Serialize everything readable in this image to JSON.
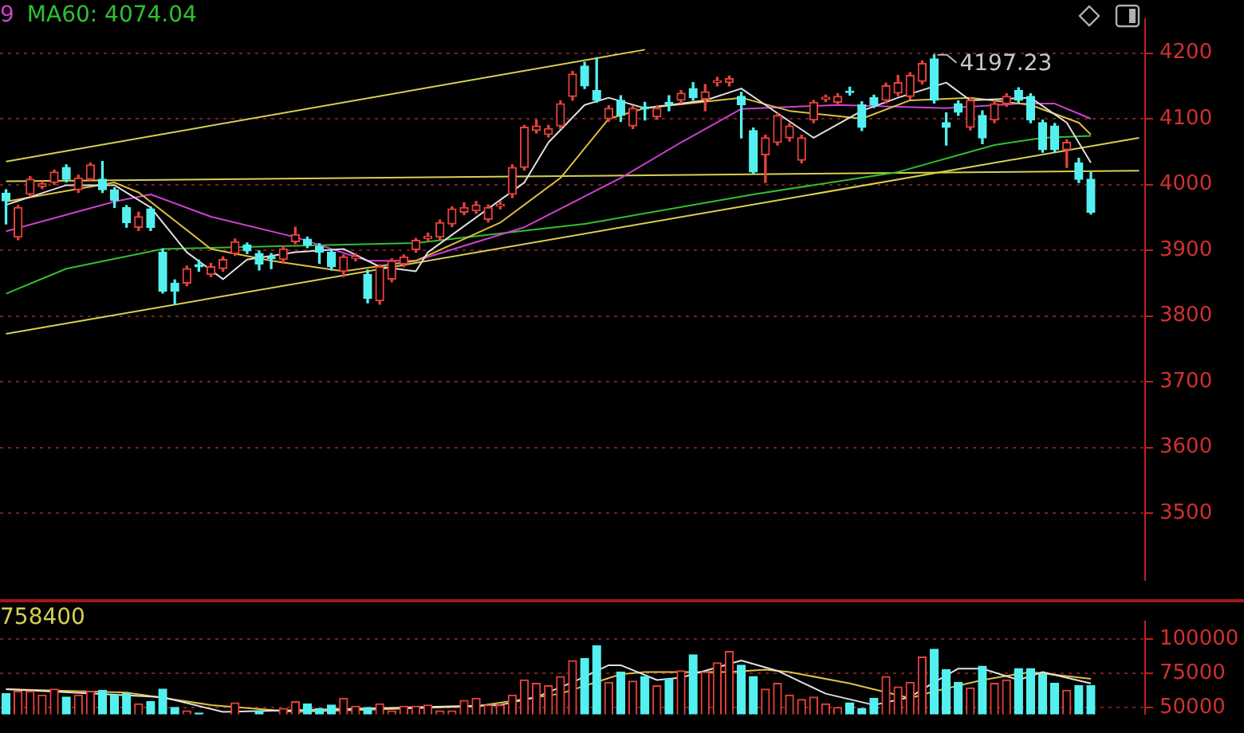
{
  "chart_data": [
    {
      "type": "candlestick",
      "ylim": [
        3398,
        4252
      ],
      "yticks": [
        3500,
        3600,
        3700,
        3800,
        3900,
        4000,
        4100,
        4200
      ],
      "grid": "y",
      "tick_labels": "y",
      "annotations": [
        "9",
        "MA60: 4074.04",
        "4197.23"
      ],
      "categories": [
        null,
        null,
        null,
        null,
        null,
        null,
        null,
        null,
        null,
        null,
        null,
        null,
        null,
        null,
        null,
        null,
        null,
        null,
        null,
        null,
        null,
        null,
        null,
        null,
        null,
        null,
        null,
        null,
        null,
        null,
        null,
        null,
        null,
        null,
        null,
        null,
        null,
        null,
        null,
        null,
        null,
        null,
        null,
        null,
        null,
        null,
        null,
        null,
        null,
        null,
        null,
        null,
        null,
        null,
        null,
        null,
        null,
        null,
        null,
        null,
        null,
        null,
        null,
        null,
        null,
        null,
        null,
        null,
        null,
        null,
        null,
        null,
        null,
        null,
        null,
        null,
        null,
        null,
        null,
        null,
        null,
        null,
        null,
        null,
        null,
        null,
        null,
        null,
        null,
        null,
        null,
        null,
        null,
        null,
        null
      ],
      "ohlc": [
        [
          3987,
          3992,
          3940,
          3975
        ],
        [
          3920,
          3968,
          3916,
          3965
        ],
        [
          3985,
          4012,
          3982,
          4008
        ],
        [
          3997,
          4004,
          3994,
          4001
        ],
        [
          4003,
          4022,
          4000,
          4019
        ],
        [
          4026,
          4030,
          4004,
          4008
        ],
        [
          3992,
          4014,
          3988,
          4010
        ],
        [
          4008,
          4033,
          4005,
          4030
        ],
        [
          4008,
          4035,
          3988,
          3992
        ],
        [
          3992,
          3995,
          3965,
          3976
        ],
        [
          3965,
          3968,
          3935,
          3942
        ],
        [
          3935,
          3958,
          3930,
          3951
        ],
        [
          3963,
          3966,
          3930,
          3935
        ],
        [
          3897,
          3902,
          3835,
          3838
        ],
        [
          3850,
          3855,
          3818,
          3838
        ],
        [
          3850,
          3876,
          3846,
          3872
        ],
        [
          3878,
          3885,
          3868,
          3875
        ],
        [
          3863,
          3880,
          3860,
          3875
        ],
        [
          3872,
          3890,
          3868,
          3886
        ],
        [
          3895,
          3917,
          3892,
          3913
        ],
        [
          3908,
          3911,
          3895,
          3899
        ],
        [
          3895,
          3899,
          3870,
          3879
        ],
        [
          3890,
          3895,
          3872,
          3887
        ],
        [
          3886,
          3906,
          3880,
          3902
        ],
        [
          3913,
          3935,
          3910,
          3924
        ],
        [
          3917,
          3920,
          3904,
          3908
        ],
        [
          3906,
          3910,
          3880,
          3897
        ],
        [
          3897,
          3900,
          3870,
          3875
        ],
        [
          3868,
          3893,
          3860,
          3890
        ],
        [
          3888,
          3895,
          3884,
          3890
        ],
        [
          3863,
          3870,
          3820,
          3827
        ],
        [
          3823,
          3878,
          3818,
          3875
        ],
        [
          3856,
          3887,
          3852,
          3884
        ],
        [
          3879,
          3893,
          3875,
          3890
        ],
        [
          3901,
          3918,
          3897,
          3915
        ],
        [
          3918,
          3926,
          3914,
          3921
        ],
        [
          3920,
          3946,
          3916,
          3942
        ],
        [
          3940,
          3966,
          3936,
          3963
        ],
        [
          3958,
          3972,
          3954,
          3965
        ],
        [
          3960,
          3974,
          3956,
          3969
        ],
        [
          3947,
          3969,
          3943,
          3965
        ],
        [
          3967,
          3974,
          3963,
          3970
        ],
        [
          3985,
          4030,
          3980,
          4026
        ],
        [
          4026,
          4090,
          4022,
          4087
        ],
        [
          4082,
          4098,
          4078,
          4089
        ],
        [
          4076,
          4090,
          4072,
          4085
        ],
        [
          4089,
          4127,
          4085,
          4123
        ],
        [
          4134,
          4172,
          4128,
          4168
        ],
        [
          4180,
          4186,
          4146,
          4150
        ],
        [
          4143,
          4193,
          4125,
          4128
        ],
        [
          4100,
          4120,
          4096,
          4116
        ],
        [
          4128,
          4135,
          4096,
          4105
        ],
        [
          4089,
          4120,
          4085,
          4116
        ],
        [
          4118,
          4125,
          4098,
          4115
        ],
        [
          4103,
          4120,
          4099,
          4116
        ],
        [
          4125,
          4135,
          4112,
          4122
        ],
        [
          4128,
          4143,
          4124,
          4139
        ],
        [
          4146,
          4155,
          4128,
          4132
        ],
        [
          4130,
          4152,
          4112,
          4141
        ],
        [
          4155,
          4163,
          4150,
          4158
        ],
        [
          4155,
          4165,
          4150,
          4161
        ],
        [
          4134,
          4140,
          4071,
          4121
        ],
        [
          4082,
          4086,
          4017,
          4019
        ],
        [
          4045,
          4075,
          4003,
          4071
        ],
        [
          4064,
          4108,
          4060,
          4105
        ],
        [
          4071,
          4093,
          4066,
          4089
        ],
        [
          4037,
          4075,
          4033,
          4071
        ],
        [
          4098,
          4128,
          4094,
          4125
        ],
        [
          4130,
          4136,
          4126,
          4133
        ],
        [
          4125,
          4138,
          4121,
          4134
        ],
        [
          4142,
          4148,
          4136,
          4140
        ],
        [
          4121,
          4126,
          4082,
          4087
        ],
        [
          4132,
          4136,
          4117,
          4121
        ],
        [
          4128,
          4154,
          4124,
          4150
        ],
        [
          4139,
          4166,
          4135,
          4155
        ],
        [
          4134,
          4170,
          4130,
          4166
        ],
        [
          4157,
          4188,
          4153,
          4184
        ],
        [
          4191,
          4197.23,
          4124,
          4128
        ],
        [
          4094,
          4109,
          4060,
          4087
        ],
        [
          4123,
          4127,
          4105,
          4110
        ],
        [
          4087,
          4132,
          4083,
          4128
        ],
        [
          4105,
          4112,
          4062,
          4071
        ],
        [
          4098,
          4127,
          4094,
          4123
        ],
        [
          4123,
          4138,
          4119,
          4134
        ],
        [
          4143,
          4147,
          4124,
          4128
        ],
        [
          4134,
          4138,
          4094,
          4098
        ],
        [
          4094,
          4098,
          4049,
          4053
        ],
        [
          4089,
          4093,
          4049,
          4053
        ],
        [
          4053,
          4068,
          4026,
          4064
        ],
        [
          4033,
          4040,
          4003,
          4008
        ],
        [
          4008,
          4018,
          3955,
          3958
        ],
        null,
        null,
        null,
        null
      ],
      "colors": [
        "#54f0f0",
        "#e8413a",
        "#e8413a",
        "#e8413a",
        "#e8413a",
        "#54f0f0",
        "#e8413a",
        "#e8413a",
        "#54f0f0",
        "#54f0f0",
        "#54f0f0",
        "#e8413a",
        "#54f0f0",
        "#54f0f0",
        "#54f0f0",
        "#e8413a",
        "#54f0f0",
        "#e8413a",
        "#e8413a",
        "#e8413a",
        "#54f0f0",
        "#54f0f0",
        "#54f0f0",
        "#e8413a",
        "#e8413a",
        "#54f0f0",
        "#54f0f0",
        "#54f0f0",
        "#e8413a",
        "#e8413a",
        "#54f0f0",
        "#e8413a",
        "#e8413a",
        "#e8413a",
        "#e8413a",
        "#e8413a",
        "#e8413a",
        "#e8413a",
        "#e8413a",
        "#e8413a",
        "#e8413a",
        "#e8413a",
        "#e8413a",
        "#e8413a",
        "#e8413a",
        "#e8413a",
        "#e8413a",
        "#e8413a",
        "#54f0f0",
        "#54f0f0",
        "#e8413a",
        "#54f0f0",
        "#e8413a",
        "#54f0f0",
        "#e8413a",
        "#54f0f0",
        "#e8413a",
        "#54f0f0",
        "#e8413a",
        "#e8413a",
        "#e8413a",
        "#54f0f0",
        "#54f0f0",
        "#e8413a",
        "#e8413a",
        "#e8413a",
        "#e8413a",
        "#e8413a",
        "#e8413a",
        "#e8413a",
        "#54f0f0",
        "#54f0f0",
        "#54f0f0",
        "#e8413a",
        "#e8413a",
        "#e8413a",
        "#e8413a",
        "#54f0f0",
        "#54f0f0",
        "#54f0f0",
        "#e8413a",
        "#54f0f0",
        "#e8413a",
        "#e8413a",
        "#54f0f0",
        "#54f0f0",
        "#54f0f0",
        "#54f0f0",
        "#e8413a",
        "#54f0f0",
        "#54f0f0",
        null,
        null,
        null,
        null
      ],
      "series": [
        {
          "type": "line",
          "color": "#e0e0e0",
          "values": [
            3969,
            null,
            null,
            null,
            null,
            3999,
            null,
            null,
            null,
            3999,
            null,
            null,
            3965,
            null,
            null,
            3897,
            null,
            null,
            3856,
            null,
            3886,
            null,
            null,
            null,
            3897,
            null,
            null,
            null,
            3902,
            null,
            null,
            3875,
            null,
            null,
            3868,
            3897,
            null,
            null,
            null,
            null,
            null,
            null,
            null,
            4003,
            null,
            4064,
            null,
            null,
            4121,
            null,
            4132,
            null,
            null,
            4116,
            null,
            null,
            null,
            null,
            4128,
            null,
            null,
            4146,
            null,
            4121,
            null,
            null,
            null,
            4071,
            null,
            null,
            null,
            4112,
            null,
            null,
            4132,
            null,
            null,
            null,
            4155,
            null,
            4128,
            null,
            null,
            null,
            null,
            4132,
            null,
            null,
            4094,
            null,
            4033,
            null,
            null,
            null,
            null
          ]
        },
        {
          "type": "line",
          "color": "#e0c040",
          "values": [
            3974,
            null,
            null,
            null,
            null,
            null,
            null,
            null,
            null,
            4003,
            null,
            3988,
            null,
            null,
            null,
            null,
            null,
            3902,
            null,
            null,
            null,
            null,
            3884,
            null,
            null,
            null,
            null,
            null,
            3868,
            null,
            null,
            null,
            null,
            null,
            3884,
            null,
            null,
            null,
            null,
            null,
            null,
            3942,
            null,
            null,
            null,
            null,
            4010,
            null,
            null,
            null,
            4100,
            null,
            null,
            4116,
            null,
            null,
            null,
            null,
            null,
            null,
            null,
            4132,
            null,
            null,
            null,
            4112,
            null,
            null,
            null,
            null,
            null,
            4100,
            null,
            null,
            null,
            4128,
            null,
            null,
            null,
            null,
            4132,
            null,
            null,
            null,
            null,
            4121,
            null,
            null,
            null,
            4094,
            4076,
            null,
            null,
            null,
            null
          ]
        },
        {
          "type": "line",
          "color": "#d040d0",
          "values": [
            3929,
            null,
            null,
            null,
            null,
            null,
            null,
            null,
            null,
            3974,
            null,
            null,
            3985,
            null,
            null,
            null,
            null,
            3951,
            null,
            null,
            null,
            null,
            null,
            null,
            3920,
            null,
            null,
            null,
            null,
            null,
            3884,
            null,
            null,
            null,
            3884,
            null,
            null,
            null,
            null,
            null,
            null,
            null,
            null,
            3935,
            null,
            null,
            null,
            null,
            null,
            null,
            null,
            4010,
            null,
            null,
            null,
            null,
            4064,
            null,
            null,
            null,
            null,
            4115,
            null,
            null,
            null,
            null,
            null,
            null,
            null,
            4121,
            null,
            null,
            null,
            null,
            null,
            null,
            null,
            null,
            4116,
            null,
            null,
            null,
            null,
            null,
            4123,
            null,
            null,
            4123,
            null,
            null,
            4100,
            null,
            null,
            null,
            null
          ]
        },
        {
          "type": "line",
          "color": "#30c030",
          "values": [
            3834,
            null,
            null,
            null,
            null,
            3872,
            null,
            null,
            null,
            null,
            null,
            null,
            null,
            3902,
            null,
            null,
            null,
            null,
            null,
            null,
            null,
            null,
            null,
            null,
            null,
            null,
            null,
            null,
            null,
            null,
            null,
            null,
            null,
            null,
            3911,
            null,
            null,
            null,
            null,
            null,
            null,
            null,
            null,
            null,
            null,
            null,
            null,
            null,
            3940,
            null,
            null,
            null,
            null,
            null,
            null,
            null,
            null,
            null,
            null,
            null,
            null,
            null,
            3985,
            null,
            null,
            null,
            null,
            null,
            null,
            null,
            null,
            null,
            null,
            null,
            4019,
            null,
            null,
            null,
            null,
            null,
            null,
            null,
            4060,
            null,
            null,
            null,
            4071,
            null,
            null,
            null,
            4074.04,
            null,
            null,
            null,
            null
          ]
        },
        {
          "type": "line",
          "color": "#d8d050",
          "values": [
            4035,
            null,
            null,
            null,
            null,
            null,
            null,
            null,
            null,
            null,
            null,
            null,
            null,
            null,
            null,
            null,
            null,
            null,
            null,
            null,
            null,
            null,
            null,
            null,
            null,
            null,
            null,
            null,
            null,
            null,
            null,
            null,
            null,
            null,
            null,
            null,
            null,
            null,
            null,
            null,
            null,
            null,
            null,
            null,
            null,
            null,
            null,
            null,
            null,
            null,
            null,
            null,
            null,
            4205,
            null,
            null,
            null,
            null,
            null,
            null,
            null,
            null,
            null,
            null,
            null,
            null,
            null,
            null,
            null,
            null,
            null,
            null,
            null,
            null,
            null,
            null,
            null,
            null,
            null,
            null,
            null,
            null,
            null,
            null,
            null,
            null,
            null,
            null,
            null,
            null,
            null,
            null,
            null,
            null,
            null
          ]
        },
        {
          "type": "line",
          "color": "#d8d050",
          "values": [
            3773,
            null,
            null,
            null,
            null,
            null,
            null,
            null,
            null,
            null,
            null,
            null,
            null,
            null,
            null,
            null,
            null,
            null,
            null,
            null,
            null,
            null,
            null,
            null,
            null,
            null,
            null,
            null,
            null,
            null,
            null,
            null,
            null,
            null,
            null,
            null,
            null,
            null,
            null,
            null,
            null,
            null,
            null,
            null,
            null,
            null,
            null,
            null,
            null,
            null,
            null,
            null,
            null,
            null,
            null,
            null,
            null,
            null,
            null,
            null,
            null,
            null,
            null,
            null,
            null,
            null,
            null,
            null,
            null,
            null,
            null,
            null,
            null,
            null,
            null,
            null,
            null,
            null,
            null,
            null,
            null,
            null,
            null,
            null,
            null,
            null,
            null,
            null,
            null,
            null,
            null,
            null,
            null,
            null,
            4071
          ]
        },
        {
          "type": "line",
          "color": "#d8d050",
          "values": [
            4005,
            null,
            null,
            null,
            null,
            null,
            null,
            null,
            null,
            null,
            null,
            null,
            null,
            null,
            null,
            null,
            null,
            null,
            null,
            null,
            null,
            null,
            null,
            null,
            null,
            null,
            null,
            null,
            null,
            null,
            null,
            null,
            null,
            null,
            null,
            null,
            null,
            null,
            null,
            null,
            null,
            null,
            null,
            null,
            null,
            null,
            null,
            null,
            null,
            null,
            null,
            null,
            null,
            null,
            null,
            null,
            null,
            null,
            null,
            null,
            null,
            null,
            null,
            null,
            null,
            null,
            null,
            null,
            null,
            null,
            null,
            null,
            null,
            null,
            null,
            null,
            null,
            null,
            null,
            null,
            null,
            null,
            null,
            null,
            null,
            null,
            null,
            null,
            null,
            null,
            null,
            null,
            null,
            null,
            4021
          ]
        }
      ]
    },
    {
      "type": "bar",
      "ylim": [
        45000,
        113000
      ],
      "yticks": [
        50000,
        75000,
        100000
      ],
      "grid": "y",
      "tick_labels": "y",
      "annotations": [
        "758400"
      ],
      "categories": [
        null,
        null,
        null,
        null,
        null,
        null,
        null,
        null,
        null,
        null,
        null,
        null,
        null,
        null,
        null,
        null,
        null,
        null,
        null,
        null,
        null,
        null,
        null,
        null,
        null,
        null,
        null,
        null,
        null,
        null,
        null,
        null,
        null,
        null,
        null,
        null,
        null,
        null,
        null,
        null,
        null,
        null,
        null,
        null,
        null,
        null,
        null,
        null,
        null,
        null,
        null,
        null,
        null,
        null,
        null,
        null,
        null,
        null,
        null,
        null,
        null,
        null,
        null,
        null,
        null,
        null,
        null,
        null,
        null,
        null,
        null,
        null,
        null,
        null,
        null,
        null,
        null,
        null,
        null,
        null,
        null,
        null,
        null,
        null,
        null,
        null,
        null,
        null,
        null,
        null,
        null,
        null,
        null,
        null,
        null
      ],
      "values": [
        60000,
        61700,
        61700,
        59000,
        63300,
        57500,
        59000,
        61700,
        62500,
        59000,
        60000,
        52500,
        54200,
        63300,
        50000,
        47500,
        45800,
        null,
        null,
        53300,
        null,
        47500,
        null,
        49200,
        54200,
        52500,
        49200,
        51700,
        56700,
        50800,
        50000,
        52500,
        47500,
        50800,
        50800,
        51700,
        47500,
        47500,
        55000,
        56700,
        51700,
        51700,
        59000,
        70000,
        67500,
        65800,
        72500,
        84200,
        85800,
        95000,
        68300,
        75800,
        69200,
        72500,
        65800,
        70800,
        76700,
        88300,
        75800,
        82500,
        90800,
        80800,
        72500,
        63300,
        67500,
        59000,
        55800,
        57500,
        52500,
        50000,
        53300,
        49200,
        56700,
        72500,
        65000,
        68300,
        86700,
        92500,
        77500,
        68300,
        64200,
        80000,
        67500,
        70000,
        78300,
        78300,
        74200,
        67500,
        62500,
        65800,
        65800,
        null,
        null,
        null,
        null
      ],
      "colors": [
        "#54f0f0",
        "#e8413a",
        "#e8413a",
        "#e8413a",
        "#e8413a",
        "#54f0f0",
        "#e8413a",
        "#e8413a",
        "#54f0f0",
        "#54f0f0",
        "#54f0f0",
        "#e8413a",
        "#54f0f0",
        "#54f0f0",
        "#54f0f0",
        "#e8413a",
        "#54f0f0",
        "#e8413a",
        "#e8413a",
        "#e8413a",
        "#54f0f0",
        "#54f0f0",
        "#54f0f0",
        "#e8413a",
        "#e8413a",
        "#54f0f0",
        "#54f0f0",
        "#54f0f0",
        "#e8413a",
        "#e8413a",
        "#54f0f0",
        "#e8413a",
        "#e8413a",
        "#e8413a",
        "#e8413a",
        "#e8413a",
        "#e8413a",
        "#e8413a",
        "#e8413a",
        "#e8413a",
        "#e8413a",
        "#e8413a",
        "#e8413a",
        "#e8413a",
        "#e8413a",
        "#e8413a",
        "#e8413a",
        "#e8413a",
        "#54f0f0",
        "#54f0f0",
        "#e8413a",
        "#54f0f0",
        "#e8413a",
        "#54f0f0",
        "#e8413a",
        "#54f0f0",
        "#e8413a",
        "#54f0f0",
        "#e8413a",
        "#e8413a",
        "#e8413a",
        "#54f0f0",
        "#54f0f0",
        "#e8413a",
        "#e8413a",
        "#e8413a",
        "#e8413a",
        "#e8413a",
        "#e8413a",
        "#e8413a",
        "#54f0f0",
        "#54f0f0",
        "#54f0f0",
        "#e8413a",
        "#e8413a",
        "#e8413a",
        "#e8413a",
        "#54f0f0",
        "#54f0f0",
        "#54f0f0",
        "#e8413a",
        "#54f0f0",
        "#e8413a",
        "#e8413a",
        "#54f0f0",
        "#54f0f0",
        "#54f0f0",
        "#54f0f0",
        "#e8413a",
        "#54f0f0",
        "#54f0f0",
        null,
        null,
        null,
        null
      ],
      "series": [
        {
          "type": "line",
          "color": "#e0e0e0",
          "values": [
            63300,
            null,
            null,
            null,
            null,
            null,
            null,
            null,
            null,
            null,
            null,
            null,
            null,
            57500,
            null,
            null,
            null,
            null,
            46700,
            null,
            null,
            null,
            null,
            null,
            null,
            null,
            null,
            null,
            null,
            null,
            49200,
            null,
            null,
            null,
            null,
            null,
            null,
            null,
            null,
            null,
            null,
            51700,
            null,
            null,
            57500,
            null,
            null,
            68300,
            null,
            null,
            80800,
            80800,
            null,
            null,
            70000,
            null,
            71700,
            null,
            null,
            null,
            null,
            84200,
            null,
            null,
            76700,
            null,
            null,
            null,
            60000,
            null,
            null,
            null,
            51700,
            null,
            null,
            57500,
            null,
            68300,
            null,
            78300,
            null,
            78300,
            null,
            null,
            70000,
            null,
            75800,
            null,
            null,
            null,
            67500,
            null,
            null,
            null,
            null
          ]
        },
        {
          "type": "line",
          "color": "#e0c040",
          "values": [
            63300,
            null,
            null,
            null,
            null,
            null,
            null,
            null,
            null,
            null,
            60800,
            null,
            null,
            null,
            null,
            null,
            null,
            51700,
            null,
            null,
            null,
            null,
            null,
            null,
            46700,
            null,
            null,
            null,
            null,
            null,
            null,
            null,
            null,
            null,
            null,
            null,
            null,
            null,
            null,
            50800,
            null,
            null,
            null,
            null,
            null,
            null,
            60000,
            null,
            null,
            null,
            null,
            74200,
            null,
            75800,
            null,
            null,
            null,
            null,
            null,
            null,
            75800,
            null,
            null,
            77500,
            null,
            75800,
            null,
            null,
            null,
            null,
            67500,
            null,
            null,
            null,
            null,
            56700,
            null,
            61700,
            null,
            null,
            null,
            70000,
            null,
            null,
            null,
            75800,
            null,
            null,
            null,
            null,
            70800,
            null,
            null,
            null,
            null
          ]
        }
      ]
    }
  ]
}
